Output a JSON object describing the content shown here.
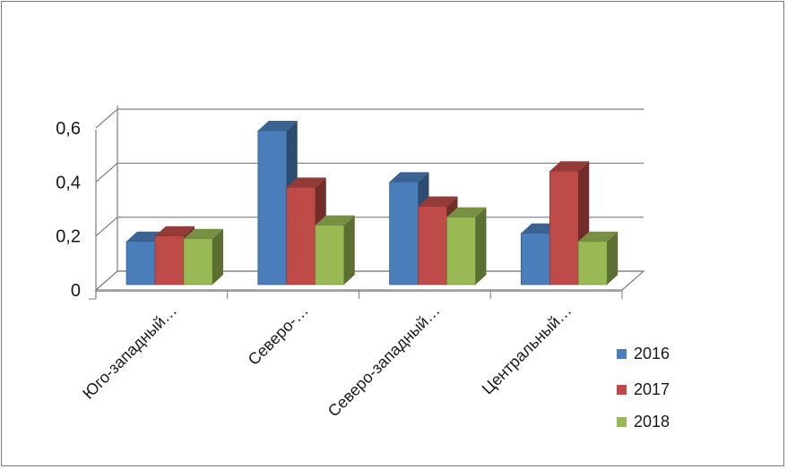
{
  "chart_data": {
    "type": "bar",
    "categories": [
      "Юго-западный…",
      "Северо-…",
      "Северо-западный…",
      "Центральный…"
    ],
    "series": [
      {
        "name": "2016",
        "values": [
          0.16,
          0.57,
          0.38,
          0.19
        ],
        "color": "#4a7ebb"
      },
      {
        "name": "2017",
        "values": [
          0.18,
          0.36,
          0.29,
          0.42
        ],
        "color": "#be4b48"
      },
      {
        "name": "2018",
        "values": [
          0.17,
          0.22,
          0.25,
          0.16
        ],
        "color": "#98b954"
      }
    ],
    "ylim": [
      0,
      0.6
    ],
    "yticks": [
      "0",
      "0,2",
      "0,4",
      "0,6"
    ],
    "grid": true,
    "legend_position": "right-bottom"
  }
}
